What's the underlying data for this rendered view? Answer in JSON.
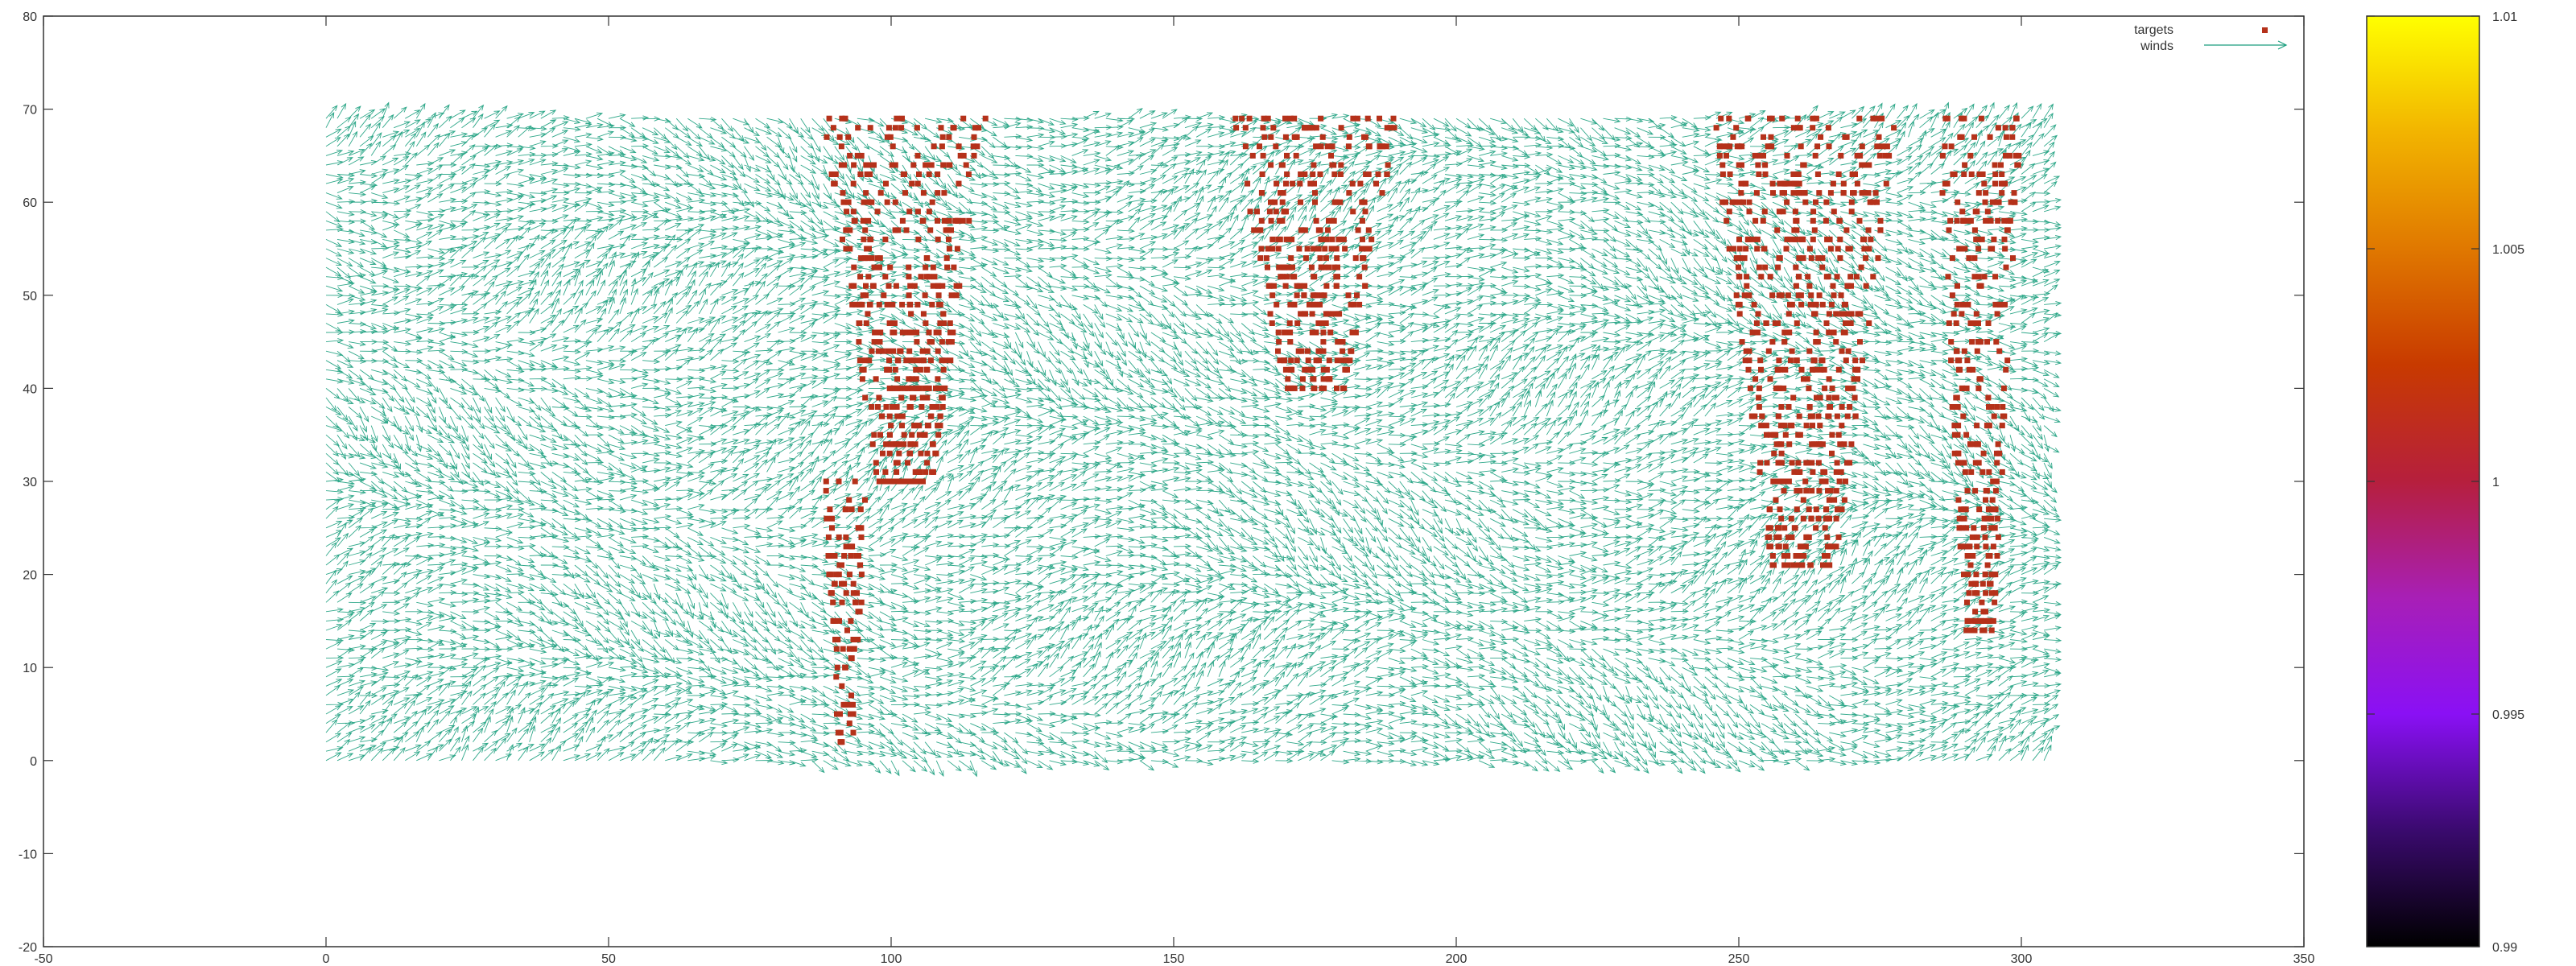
{
  "chart_data": {
    "type": "scatter",
    "title": "",
    "xlabel": "",
    "ylabel": "",
    "xlim": [
      -50,
      350
    ],
    "ylim": [
      -20,
      80
    ],
    "grid": false,
    "legend_position": "top-right",
    "x_ticks": [
      -50,
      0,
      50,
      100,
      150,
      200,
      250,
      300,
      350
    ],
    "x_tick_labels": [
      "-50",
      "0",
      "50",
      "100",
      "150",
      "200",
      "250",
      "300",
      "350"
    ],
    "y_ticks": [
      -20,
      -10,
      0,
      10,
      20,
      30,
      40,
      50,
      60,
      70,
      80
    ],
    "y_tick_labels": [
      "-20",
      "-10",
      "0",
      "10",
      "20",
      "30",
      "40",
      "50",
      "60",
      "70",
      "80"
    ],
    "colorbar": {
      "range": [
        0.99,
        1.01
      ],
      "ticks": [
        0.99,
        0.995,
        1,
        1.005,
        1.01
      ],
      "tick_labels": [
        "0.99",
        "0.995",
        "1",
        "1.005",
        "1.01"
      ],
      "palette": [
        "#000000",
        "#3a0a6e",
        "#8a10f5",
        "#a81fb6",
        "#b61f3d",
        "#c83a00",
        "#e07800",
        "#f2b400",
        "#ffff00"
      ]
    },
    "series": [
      {
        "name": "winds",
        "kind": "vector_field",
        "color": "#1a9e7d",
        "x_range": [
          0,
          304
        ],
        "y_range": [
          0,
          69
        ],
        "note_values": "dense field of unit wind vectors, mostly pointing right with varying upward/downward tilt"
      },
      {
        "name": "targets",
        "kind": "points",
        "color": "#b5311a",
        "clusters": [
          {
            "x_range": [
              88,
              117
            ],
            "y_range": [
              30,
              69
            ]
          },
          {
            "x_range": [
              88,
              96
            ],
            "y_range": [
              2,
              30
            ]
          },
          {
            "x_range": [
              160,
              190
            ],
            "y_range": [
              40,
              69
            ]
          },
          {
            "x_range": [
              245,
              278
            ],
            "y_range": [
              21,
              69
            ]
          },
          {
            "x_range": [
              285,
              300
            ],
            "y_range": [
              14,
              69
            ]
          }
        ]
      }
    ]
  }
}
